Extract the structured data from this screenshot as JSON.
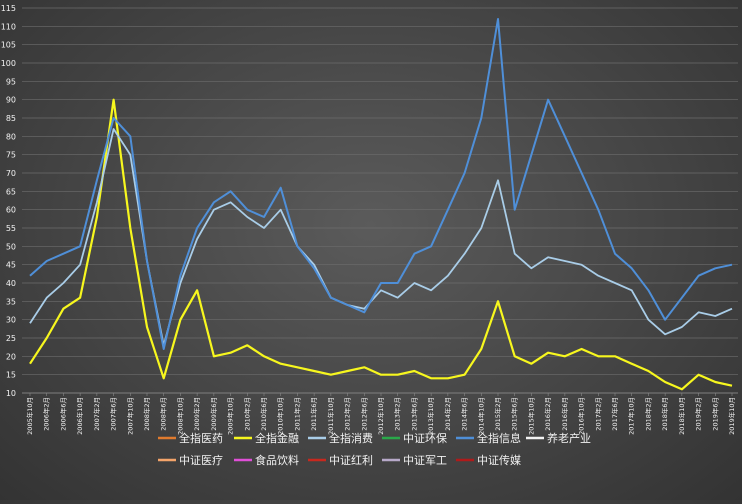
{
  "chart_data": {
    "type": "line",
    "title": "",
    "xlabel": "",
    "ylabel": "",
    "ylim": [
      10,
      115
    ],
    "yticks": [
      10,
      15,
      20,
      25,
      30,
      35,
      40,
      45,
      50,
      55,
      60,
      65,
      70,
      75,
      80,
      85,
      90,
      95,
      100,
      105,
      110,
      115
    ],
    "grid": "horizontal",
    "legend_position": "bottom",
    "x": [
      "2005年10月",
      "2006年2月",
      "2006年6月",
      "2006年10月",
      "2007年2月",
      "2007年6月",
      "2007年10月",
      "2008年2月",
      "2008年6月",
      "2008年10月",
      "2009年2月",
      "2009年6月",
      "2009年10月",
      "2010年2月",
      "2010年6月",
      "2010年10月",
      "2011年2月",
      "2011年6月",
      "2011年10月",
      "2012年2月",
      "2012年6月",
      "2012年10月",
      "2013年2月",
      "2013年6月",
      "2013年10月",
      "2014年2月",
      "2014年6月",
      "2014年10月",
      "2015年2月",
      "2015年6月",
      "2015年10月",
      "2016年2月",
      "2016年6月",
      "2016年10月",
      "2017年2月",
      "2017年6月",
      "2017年10月",
      "2018年2月",
      "2018年6月",
      "2018年10月",
      "2019年2月",
      "2019年6月",
      "2019年10月"
    ],
    "series": [
      {
        "name": "全指医药",
        "color": "#e07b2e",
        "width": 2.2,
        "values": [
          null,
          null,
          null,
          null,
          null,
          null,
          null,
          null,
          null,
          null,
          null,
          null,
          null,
          null,
          null,
          null,
          null,
          null,
          null,
          null,
          null,
          null,
          null,
          null,
          null,
          null,
          null,
          null,
          null,
          null,
          null,
          null,
          null,
          null,
          null,
          null,
          null,
          null,
          null,
          null,
          null,
          null,
          null
        ]
      },
      {
        "name": "全指金融",
        "color": "#f7f71e",
        "width": 2.2,
        "values": [
          18,
          25,
          33,
          36,
          58,
          90,
          55,
          28,
          14,
          30,
          38,
          20,
          21,
          23,
          20,
          18,
          17,
          16,
          15,
          16,
          17,
          15,
          15,
          16,
          14,
          14,
          15,
          22,
          35,
          20,
          18,
          21,
          20,
          22,
          20,
          20,
          18,
          16,
          13,
          11,
          15,
          13,
          12
        ]
      },
      {
        "name": "全指消费",
        "color": "#a9cde8",
        "width": 1.8,
        "values": [
          29,
          36,
          40,
          45,
          62,
          82,
          75,
          46,
          23,
          40,
          52,
          60,
          62,
          58,
          55,
          60,
          50,
          45,
          36,
          34,
          33,
          38,
          36,
          40,
          38,
          42,
          48,
          55,
          68,
          48,
          44,
          47,
          46,
          45,
          42,
          40,
          38,
          30,
          26,
          28,
          32,
          31,
          33
        ]
      },
      {
        "name": "中证环保",
        "color": "#2aa84a",
        "width": 1.8,
        "values": [
          null,
          null,
          null,
          null,
          null,
          null,
          null,
          null,
          null,
          null,
          null,
          null,
          null,
          null,
          null,
          null,
          null,
          null,
          null,
          null,
          null,
          null,
          null,
          null,
          null,
          null,
          null,
          null,
          null,
          null,
          null,
          null,
          null,
          null,
          null,
          null,
          null,
          null,
          null,
          null,
          null,
          null,
          null
        ]
      },
      {
        "name": "全指信息",
        "color": "#4f8fd8",
        "width": 2.0,
        "values": [
          42,
          46,
          48,
          50,
          68,
          85,
          80,
          46,
          22,
          42,
          55,
          62,
          65,
          60,
          58,
          66,
          50,
          44,
          36,
          34,
          32,
          40,
          40,
          48,
          50,
          60,
          70,
          85,
          112,
          60,
          75,
          90,
          80,
          70,
          60,
          48,
          44,
          38,
          30,
          36,
          42,
          44,
          45
        ]
      },
      {
        "name": "养老产业",
        "color": "#f2f2f2",
        "width": 2.0,
        "values": [
          null,
          null,
          null,
          null,
          null,
          null,
          null,
          null,
          null,
          null,
          null,
          null,
          null,
          null,
          null,
          null,
          null,
          null,
          null,
          null,
          null,
          null,
          null,
          null,
          null,
          null,
          null,
          null,
          null,
          null,
          null,
          null,
          null,
          null,
          null,
          null,
          null,
          null,
          null,
          null,
          null,
          null,
          null
        ]
      },
      {
        "name": "中证医疗",
        "color": "#f4a46a",
        "width": 2.2,
        "values": [
          null,
          null,
          null,
          null,
          null,
          null,
          null,
          null,
          null,
          null,
          null,
          null,
          null,
          null,
          null,
          null,
          null,
          null,
          null,
          null,
          null,
          null,
          null,
          null,
          null,
          null,
          null,
          null,
          null,
          null,
          null,
          null,
          null,
          null,
          null,
          null,
          null,
          null,
          null,
          null,
          null,
          null,
          null
        ]
      },
      {
        "name": "食品饮料",
        "color": "#e04fd8",
        "width": 2.0,
        "values": [
          null,
          null,
          null,
          null,
          null,
          null,
          null,
          null,
          null,
          null,
          null,
          null,
          null,
          null,
          null,
          null,
          null,
          null,
          null,
          null,
          null,
          null,
          null,
          null,
          null,
          null,
          null,
          null,
          null,
          null,
          null,
          null,
          null,
          null,
          null,
          null,
          null,
          null,
          null,
          null,
          null,
          null,
          null
        ]
      },
      {
        "name": "中证红利",
        "color": "#c8281e",
        "width": 2.0,
        "values": [
          null,
          null,
          null,
          null,
          null,
          null,
          null,
          null,
          null,
          null,
          null,
          null,
          null,
          null,
          null,
          null,
          null,
          null,
          null,
          null,
          null,
          null,
          null,
          null,
          null,
          null,
          null,
          null,
          null,
          null,
          null,
          null,
          null,
          null,
          null,
          null,
          null,
          null,
          null,
          null,
          null,
          null,
          null
        ]
      },
      {
        "name": "中证军工",
        "color": "#b7a9c9",
        "width": 1.6,
        "values": [
          null,
          null,
          null,
          null,
          null,
          null,
          null,
          null,
          null,
          null,
          null,
          null,
          null,
          null,
          null,
          null,
          null,
          null,
          null,
          null,
          null,
          null,
          null,
          null,
          null,
          null,
          null,
          null,
          null,
          null,
          null,
          null,
          null,
          null,
          null,
          null,
          null,
          null,
          null,
          null,
          null,
          null,
          null
        ]
      },
      {
        "name": "中证传媒",
        "color": "#b01a1a",
        "width": 2.0,
        "values": [
          null,
          null,
          null,
          null,
          null,
          null,
          null,
          null,
          null,
          null,
          null,
          null,
          null,
          null,
          null,
          null,
          null,
          null,
          null,
          null,
          null,
          null,
          null,
          null,
          null,
          null,
          null,
          null,
          null,
          null,
          null,
          null,
          null,
          null,
          null,
          null,
          null,
          null,
          null,
          null,
          null,
          null,
          null
        ]
      }
    ]
  }
}
